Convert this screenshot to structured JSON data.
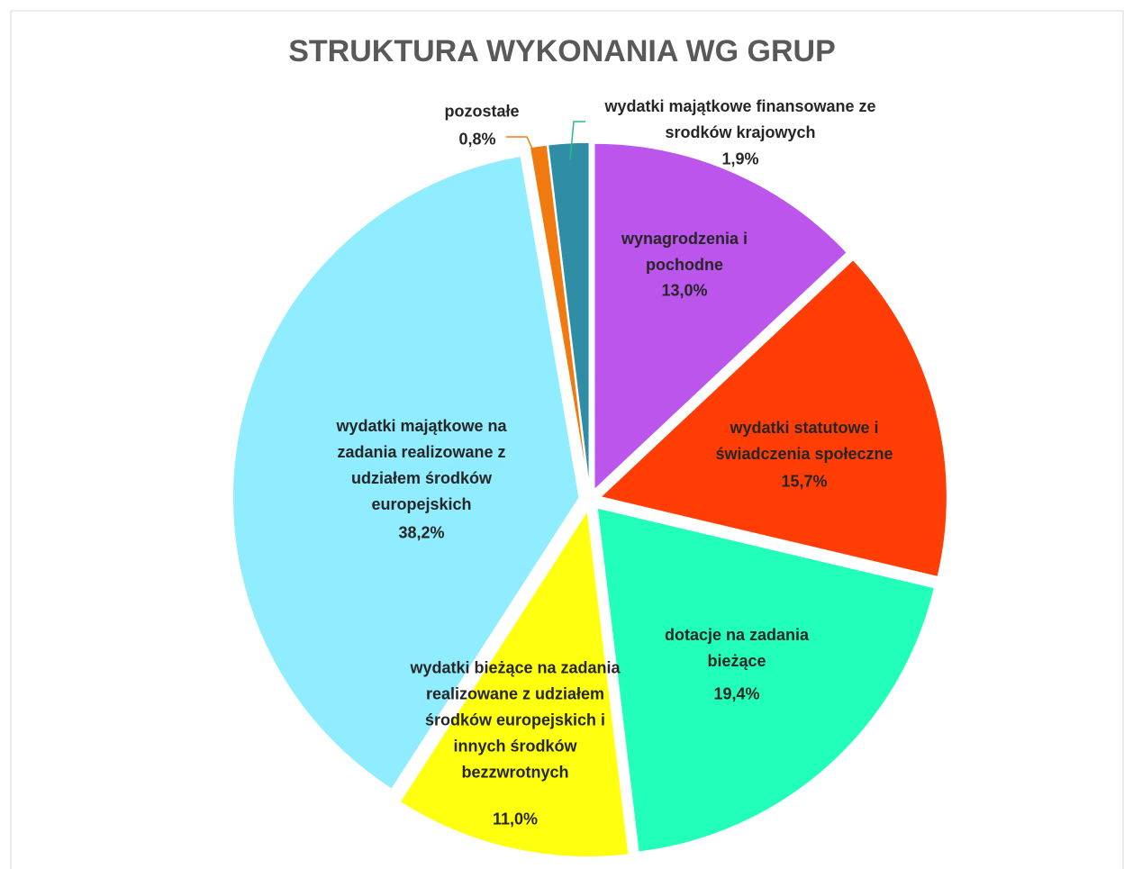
{
  "chart_data": {
    "type": "pie",
    "title": "STRUKTURA WYKONANIA WG GRUP",
    "categories": [
      "wynagrodzenia i pochodne",
      "wydatki statutowe i świadczenia społeczne",
      "dotacje na zadania bieżące",
      "wydatki bieżące na zadania realizowane z udziałem środków europejskich i innych środków bezzwrotnych",
      "wydatki majątkowe na zadania realizowane z udziałem środków europejskich",
      "pozostałe",
      "wydatki majątkowe finansowane ze srodków krajowych"
    ],
    "values": [
      13.0,
      15.7,
      19.4,
      11.0,
      38.2,
      0.8,
      1.9
    ],
    "value_labels": [
      "13,0%",
      "15,7%",
      "19,4%",
      "11,0%",
      "38,2%",
      "0,8%",
      "1,9%"
    ],
    "colors": [
      "#bb55ec",
      "#ff3d05",
      "#22ffb8",
      "#ffff10",
      "#90ecff",
      "#f07a10",
      "#2f8ea6"
    ]
  }
}
